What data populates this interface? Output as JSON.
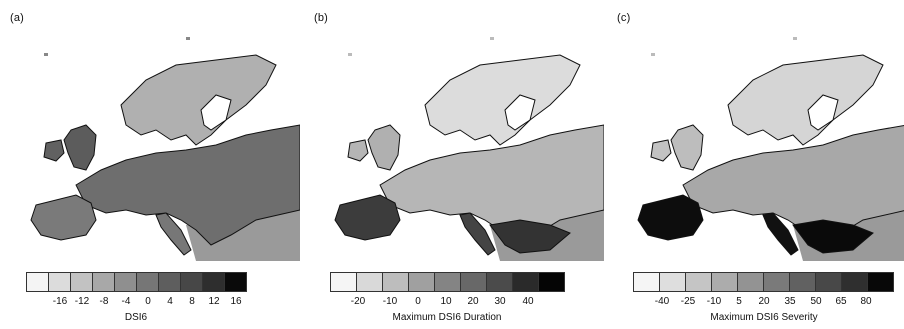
{
  "panels": [
    {
      "label": "(a)",
      "colorbar_title": "DSI6",
      "tick_labels": [
        "-16",
        "-12",
        "-8",
        "-4",
        "0",
        "4",
        "8",
        "12",
        "16"
      ],
      "swatch_colors": [
        "#f4f4f4",
        "#dcdcdc",
        "#c2c2c2",
        "#a8a8a8",
        "#8f8f8f",
        "#767676",
        "#5e5e5e",
        "#474747",
        "#2e2e2e",
        "#0a0a0a"
      ]
    },
    {
      "label": "(b)",
      "colorbar_title": "Maximum DSI6 Duration",
      "tick_labels": [
        "-20",
        "-10",
        "0",
        "10",
        "20",
        "30",
        "40"
      ],
      "swatch_colors": [
        "#f5f5f5",
        "#d9d9d9",
        "#bdbdbd",
        "#a0a0a0",
        "#848484",
        "#686868",
        "#4b4b4b",
        "#2a2a2a",
        "#050505"
      ]
    },
    {
      "label": "(c)",
      "colorbar_title": "Maximum DSI6 Severity",
      "tick_labels": [
        "-40",
        "-25",
        "-10",
        "5",
        "20",
        "35",
        "50",
        "65",
        "80"
      ],
      "swatch_colors": [
        "#f5f5f5",
        "#dedede",
        "#c5c5c5",
        "#acacac",
        "#939393",
        "#7a7a7a",
        "#616161",
        "#484848",
        "#2f2f2f",
        "#080808"
      ]
    }
  ],
  "map_shading": {
    "panel_a_land": "#7f7f7f",
    "panel_b_land": "#c2c2c2",
    "panel_c_land": "#b5b5b5",
    "ocean": "#ffffff",
    "outside_domain": "#9a9a9a",
    "coastline": "#111111"
  }
}
